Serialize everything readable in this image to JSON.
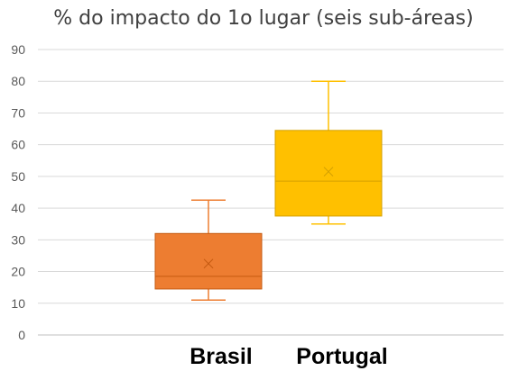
{
  "chart_data": {
    "type": "boxplot",
    "title": "% do impacto do 1o lugar (seis sub-áreas)",
    "xlabel": "",
    "ylabel": "",
    "ylim": [
      0,
      90
    ],
    "yticks": [
      0,
      10,
      20,
      30,
      40,
      50,
      60,
      70,
      80,
      90
    ],
    "grid": true,
    "legend": "none",
    "categories": [
      "Brasil",
      "Portugal"
    ],
    "series": [
      {
        "category": "Brasil",
        "color": "#ED7D31",
        "min": 11,
        "q1": 14.5,
        "median": 18.5,
        "mean": 22.5,
        "q3": 32,
        "max": 42.5
      },
      {
        "category": "Portugal",
        "color": "#FFC000",
        "min": 35,
        "q1": 37.5,
        "median": 48.5,
        "mean": 51.5,
        "q3": 64.5,
        "max": 80
      }
    ]
  }
}
